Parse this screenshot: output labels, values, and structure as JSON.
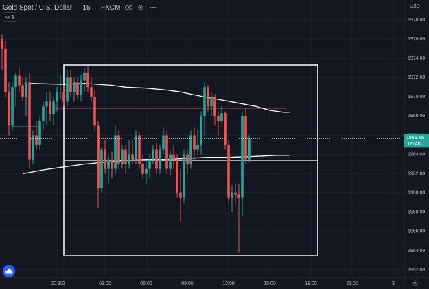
{
  "legend": {
    "symbol": "Gold Spot / U.S. Dollar",
    "interval": "15",
    "exchange": "FXCM",
    "sep": "·",
    "eye_icon": "eye-icon",
    "gear_icon": "gear-icon",
    "more_icon": "more-icon"
  },
  "indicators_toggle": {
    "icon": "chevron-down-icon",
    "count": "3"
  },
  "logo_icon": "cloud-icon",
  "settings_icon": "gear-icon",
  "colors": {
    "background": "#131722",
    "up": "#26a69a",
    "down": "#ef5350",
    "grid": "#1e222d",
    "ma": "#ffffff",
    "current_price_line": "#ffffff",
    "price_badge": "#26a69a",
    "ref_line_red": "#ef5350",
    "ref_line_green": "#26a69a"
  },
  "chart_data": {
    "type": "candlestick",
    "currency_label": "USD",
    "y_axis": {
      "range": [
        1951,
        1980
      ],
      "ticks": [
        "1952.00",
        "1954.00",
        "1956.00",
        "1958.00",
        "1960.00",
        "1962.00",
        "1964.00",
        "1966.00",
        "1968.00",
        "1970.00",
        "1972.00",
        "1974.00",
        "1976.00",
        "1978.00"
      ]
    },
    "x_axis": {
      "ticks": [
        {
          "label": "20:30",
          "i": -2
        },
        {
          "label": "2",
          "i": 0
        },
        {
          "label": "03:00",
          "i": 12
        },
        {
          "label": "06:00",
          "i": 24
        },
        {
          "label": "09:00",
          "i": 36
        },
        {
          "label": "12:00",
          "i": 48
        },
        {
          "label": "15:00",
          "i": 60
        },
        {
          "label": "18:00",
          "i": 72
        },
        {
          "label": "21:00",
          "i": 84
        },
        {
          "label": "3",
          "i": 96
        }
      ]
    },
    "current_price": {
      "value": "1965.65",
      "countdown": "05:48"
    },
    "candles": [
      [
        1976.0,
        1976.5,
        1972.8,
        1975.0
      ],
      [
        1975.0,
        1975.8,
        1970.0,
        1970.5
      ],
      [
        1970.5,
        1971.5,
        1966.0,
        1967.0
      ],
      [
        1967.0,
        1971.5,
        1966.5,
        1971.0
      ],
      [
        1971.0,
        1972.5,
        1969.0,
        1972.2
      ],
      [
        1972.2,
        1973.0,
        1970.5,
        1971.2
      ],
      [
        1971.2,
        1972.0,
        1969.5,
        1970.0
      ],
      [
        1970.0,
        1972.0,
        1968.0,
        1971.5
      ],
      [
        1971.5,
        1972.5,
        1962.5,
        1963.5
      ],
      [
        1963.5,
        1966.5,
        1963.0,
        1966.0
      ],
      [
        1966.0,
        1967.5,
        1964.5,
        1965.0
      ],
      [
        1965.0,
        1968.0,
        1964.5,
        1967.5
      ],
      [
        1967.5,
        1969.5,
        1966.5,
        1969.0
      ],
      [
        1969.0,
        1970.5,
        1967.0,
        1969.5
      ],
      [
        1969.5,
        1970.5,
        1967.5,
        1968.2
      ],
      [
        1968.2,
        1970.0,
        1967.0,
        1969.5
      ],
      [
        1969.5,
        1971.0,
        1968.5,
        1970.5
      ],
      [
        1970.5,
        1972.2,
        1969.8,
        1970.5
      ],
      [
        1970.5,
        1971.2,
        1969.0,
        1969.5
      ],
      [
        1969.5,
        1972.8,
        1969.0,
        1972.0
      ],
      [
        1972.0,
        1972.8,
        1970.0,
        1970.5
      ],
      [
        1970.5,
        1972.0,
        1969.5,
        1971.5
      ],
      [
        1971.5,
        1972.0,
        1969.8,
        1970.2
      ],
      [
        1970.2,
        1972.3,
        1969.5,
        1971.7
      ],
      [
        1971.7,
        1973.0,
        1970.5,
        1972.5
      ],
      [
        1972.5,
        1973.2,
        1970.5,
        1971.0
      ],
      [
        1971.0,
        1972.0,
        1969.5,
        1970.0
      ],
      [
        1970.0,
        1970.8,
        1966.5,
        1967.0
      ],
      [
        1967.0,
        1967.5,
        1958.5,
        1960.5
      ],
      [
        1960.5,
        1964.8,
        1960.0,
        1964.5
      ],
      [
        1964.5,
        1965.5,
        1962.0,
        1962.5
      ],
      [
        1962.5,
        1964.0,
        1961.0,
        1963.5
      ],
      [
        1963.5,
        1964.3,
        1961.5,
        1962.5
      ],
      [
        1962.5,
        1967.0,
        1962.0,
        1966.0
      ],
      [
        1966.0,
        1966.5,
        1962.5,
        1963.0
      ],
      [
        1963.0,
        1965.0,
        1962.5,
        1964.5
      ],
      [
        1964.5,
        1965.0,
        1962.0,
        1963.0
      ],
      [
        1963.0,
        1965.5,
        1962.5,
        1964.0
      ],
      [
        1964.0,
        1965.5,
        1963.0,
        1963.5
      ],
      [
        1963.5,
        1966.5,
        1963.0,
        1966.0
      ],
      [
        1966.0,
        1966.3,
        1962.5,
        1963.0
      ],
      [
        1963.0,
        1964.0,
        1961.5,
        1962.0
      ],
      [
        1962.0,
        1963.5,
        1961.0,
        1962.5
      ],
      [
        1962.5,
        1964.0,
        1961.5,
        1963.5
      ],
      [
        1963.5,
        1965.0,
        1963.0,
        1964.5
      ],
      [
        1964.5,
        1965.2,
        1962.0,
        1962.5
      ],
      [
        1962.5,
        1965.0,
        1962.0,
        1964.5
      ],
      [
        1964.5,
        1966.8,
        1964.0,
        1966.0
      ],
      [
        1966.0,
        1966.5,
        1962.0,
        1962.5
      ],
      [
        1962.5,
        1964.5,
        1961.8,
        1964.0
      ],
      [
        1964.0,
        1965.0,
        1962.5,
        1963.5
      ],
      [
        1963.5,
        1964.0,
        1959.5,
        1960.0
      ],
      [
        1960.0,
        1962.5,
        1957.0,
        1959.5
      ],
      [
        1959.5,
        1964.5,
        1959.0,
        1964.0
      ],
      [
        1964.0,
        1964.5,
        1962.0,
        1963.0
      ],
      [
        1963.0,
        1966.5,
        1962.5,
        1966.0
      ],
      [
        1966.0,
        1966.8,
        1963.5,
        1964.5
      ],
      [
        1964.5,
        1966.5,
        1964.0,
        1965.0
      ],
      [
        1965.0,
        1968.5,
        1964.0,
        1968.0
      ],
      [
        1968.0,
        1971.5,
        1966.0,
        1971.0
      ],
      [
        1971.0,
        1971.2,
        1968.5,
        1969.0
      ],
      [
        1969.0,
        1970.5,
        1968.0,
        1970.0
      ],
      [
        1970.0,
        1970.3,
        1967.0,
        1968.0
      ],
      [
        1968.0,
        1968.5,
        1966.0,
        1967.5
      ],
      [
        1967.5,
        1969.0,
        1967.2,
        1968.3
      ],
      [
        1968.3,
        1968.5,
        1964.5,
        1965.0
      ],
      [
        1965.0,
        1965.5,
        1959.0,
        1959.5
      ],
      [
        1959.5,
        1960.8,
        1958.0,
        1960.0
      ],
      [
        1960.0,
        1961.0,
        1958.8,
        1959.8
      ],
      [
        1959.8,
        1961.0,
        1953.8,
        1959.5
      ],
      [
        1959.5,
        1968.5,
        1957.5,
        1968.0
      ],
      [
        1968.0,
        1968.8,
        1963.0,
        1963.5
      ],
      [
        1963.5,
        1966.0,
        1963.2,
        1965.65
      ]
    ],
    "moving_averages": [
      {
        "points": [
          [
            -10,
            1971.4
          ],
          [
            0,
            1971.3
          ],
          [
            6,
            1971.4
          ],
          [
            14,
            1971.2
          ],
          [
            18,
            1971.0
          ],
          [
            24,
            1970.9
          ],
          [
            30,
            1970.7
          ],
          [
            34,
            1970.5
          ],
          [
            38,
            1970.2
          ],
          [
            44,
            1969.8
          ],
          [
            50,
            1969.4
          ],
          [
            56,
            1969.0
          ],
          [
            60,
            1968.6
          ],
          [
            64,
            1968.4
          ],
          [
            66,
            1968.4
          ]
        ]
      },
      {
        "points": [
          [
            -12,
            1962.0
          ],
          [
            -6,
            1962.4
          ],
          [
            0,
            1962.7
          ],
          [
            6,
            1963.0
          ],
          [
            12,
            1963.2
          ],
          [
            18,
            1963.4
          ],
          [
            24,
            1963.5
          ],
          [
            30,
            1963.5
          ],
          [
            36,
            1963.6
          ],
          [
            42,
            1963.7
          ],
          [
            48,
            1963.7
          ],
          [
            56,
            1963.8
          ],
          [
            62,
            1963.9
          ],
          [
            66,
            1963.9
          ]
        ]
      }
    ],
    "horizontal_lines": [
      {
        "y": 1968.8,
        "from_i": -3,
        "to_i": 65,
        "color": "red"
      },
      {
        "y": 1966.9,
        "from_i": -15,
        "to_i": -7,
        "color": "green"
      },
      {
        "y": 1963.4,
        "from_i": 0,
        "to_i": 74,
        "color": "white"
      }
    ],
    "rectangle": {
      "from_i": 0,
      "to_i": 74,
      "top": 1973.3,
      "bottom": 1953.5
    }
  }
}
